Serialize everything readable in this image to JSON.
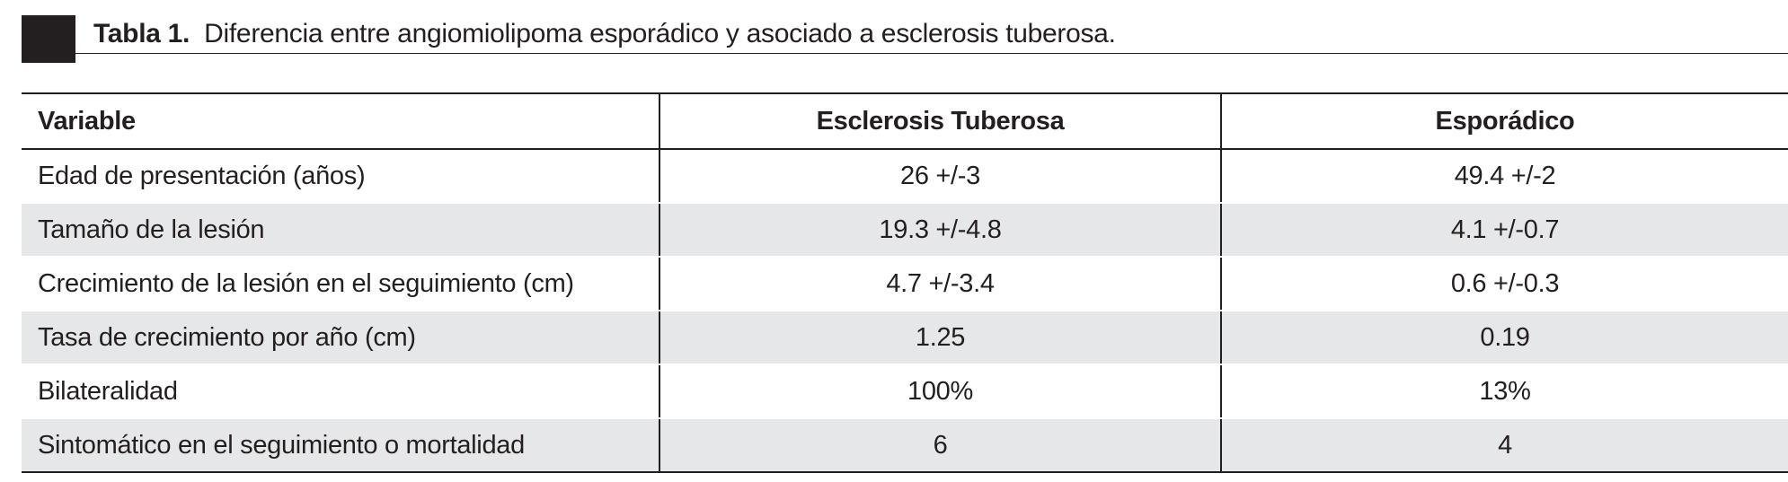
{
  "caption": {
    "label": "Tabla 1.",
    "text": "Diferencia entre angiomiolipoma esporádico y asociado a esclerosis tuberosa."
  },
  "table": {
    "headers": [
      "Variable",
      "Esclerosis Tuberosa",
      "Esporádico"
    ],
    "rows": [
      [
        "Edad de presentación (años)",
        "26 +/-3",
        "49.4 +/-2"
      ],
      [
        "Tamaño de la lesión",
        "19.3 +/-4.8",
        "4.1 +/-0.7"
      ],
      [
        "Crecimiento de la lesión en el seguimiento (cm)",
        "4.7 +/-3.4",
        "0.6 +/-0.3"
      ],
      [
        "Tasa de crecimiento por año (cm)",
        "1.25",
        "0.19"
      ],
      [
        "Bilateralidad",
        "100%",
        "13%"
      ],
      [
        "Sintomático en el seguimiento o mortalidad",
        "6",
        "4"
      ]
    ]
  },
  "colors": {
    "text": "#231f20",
    "row_shade": "#e6e7e8",
    "caption_block": "#231f20"
  }
}
